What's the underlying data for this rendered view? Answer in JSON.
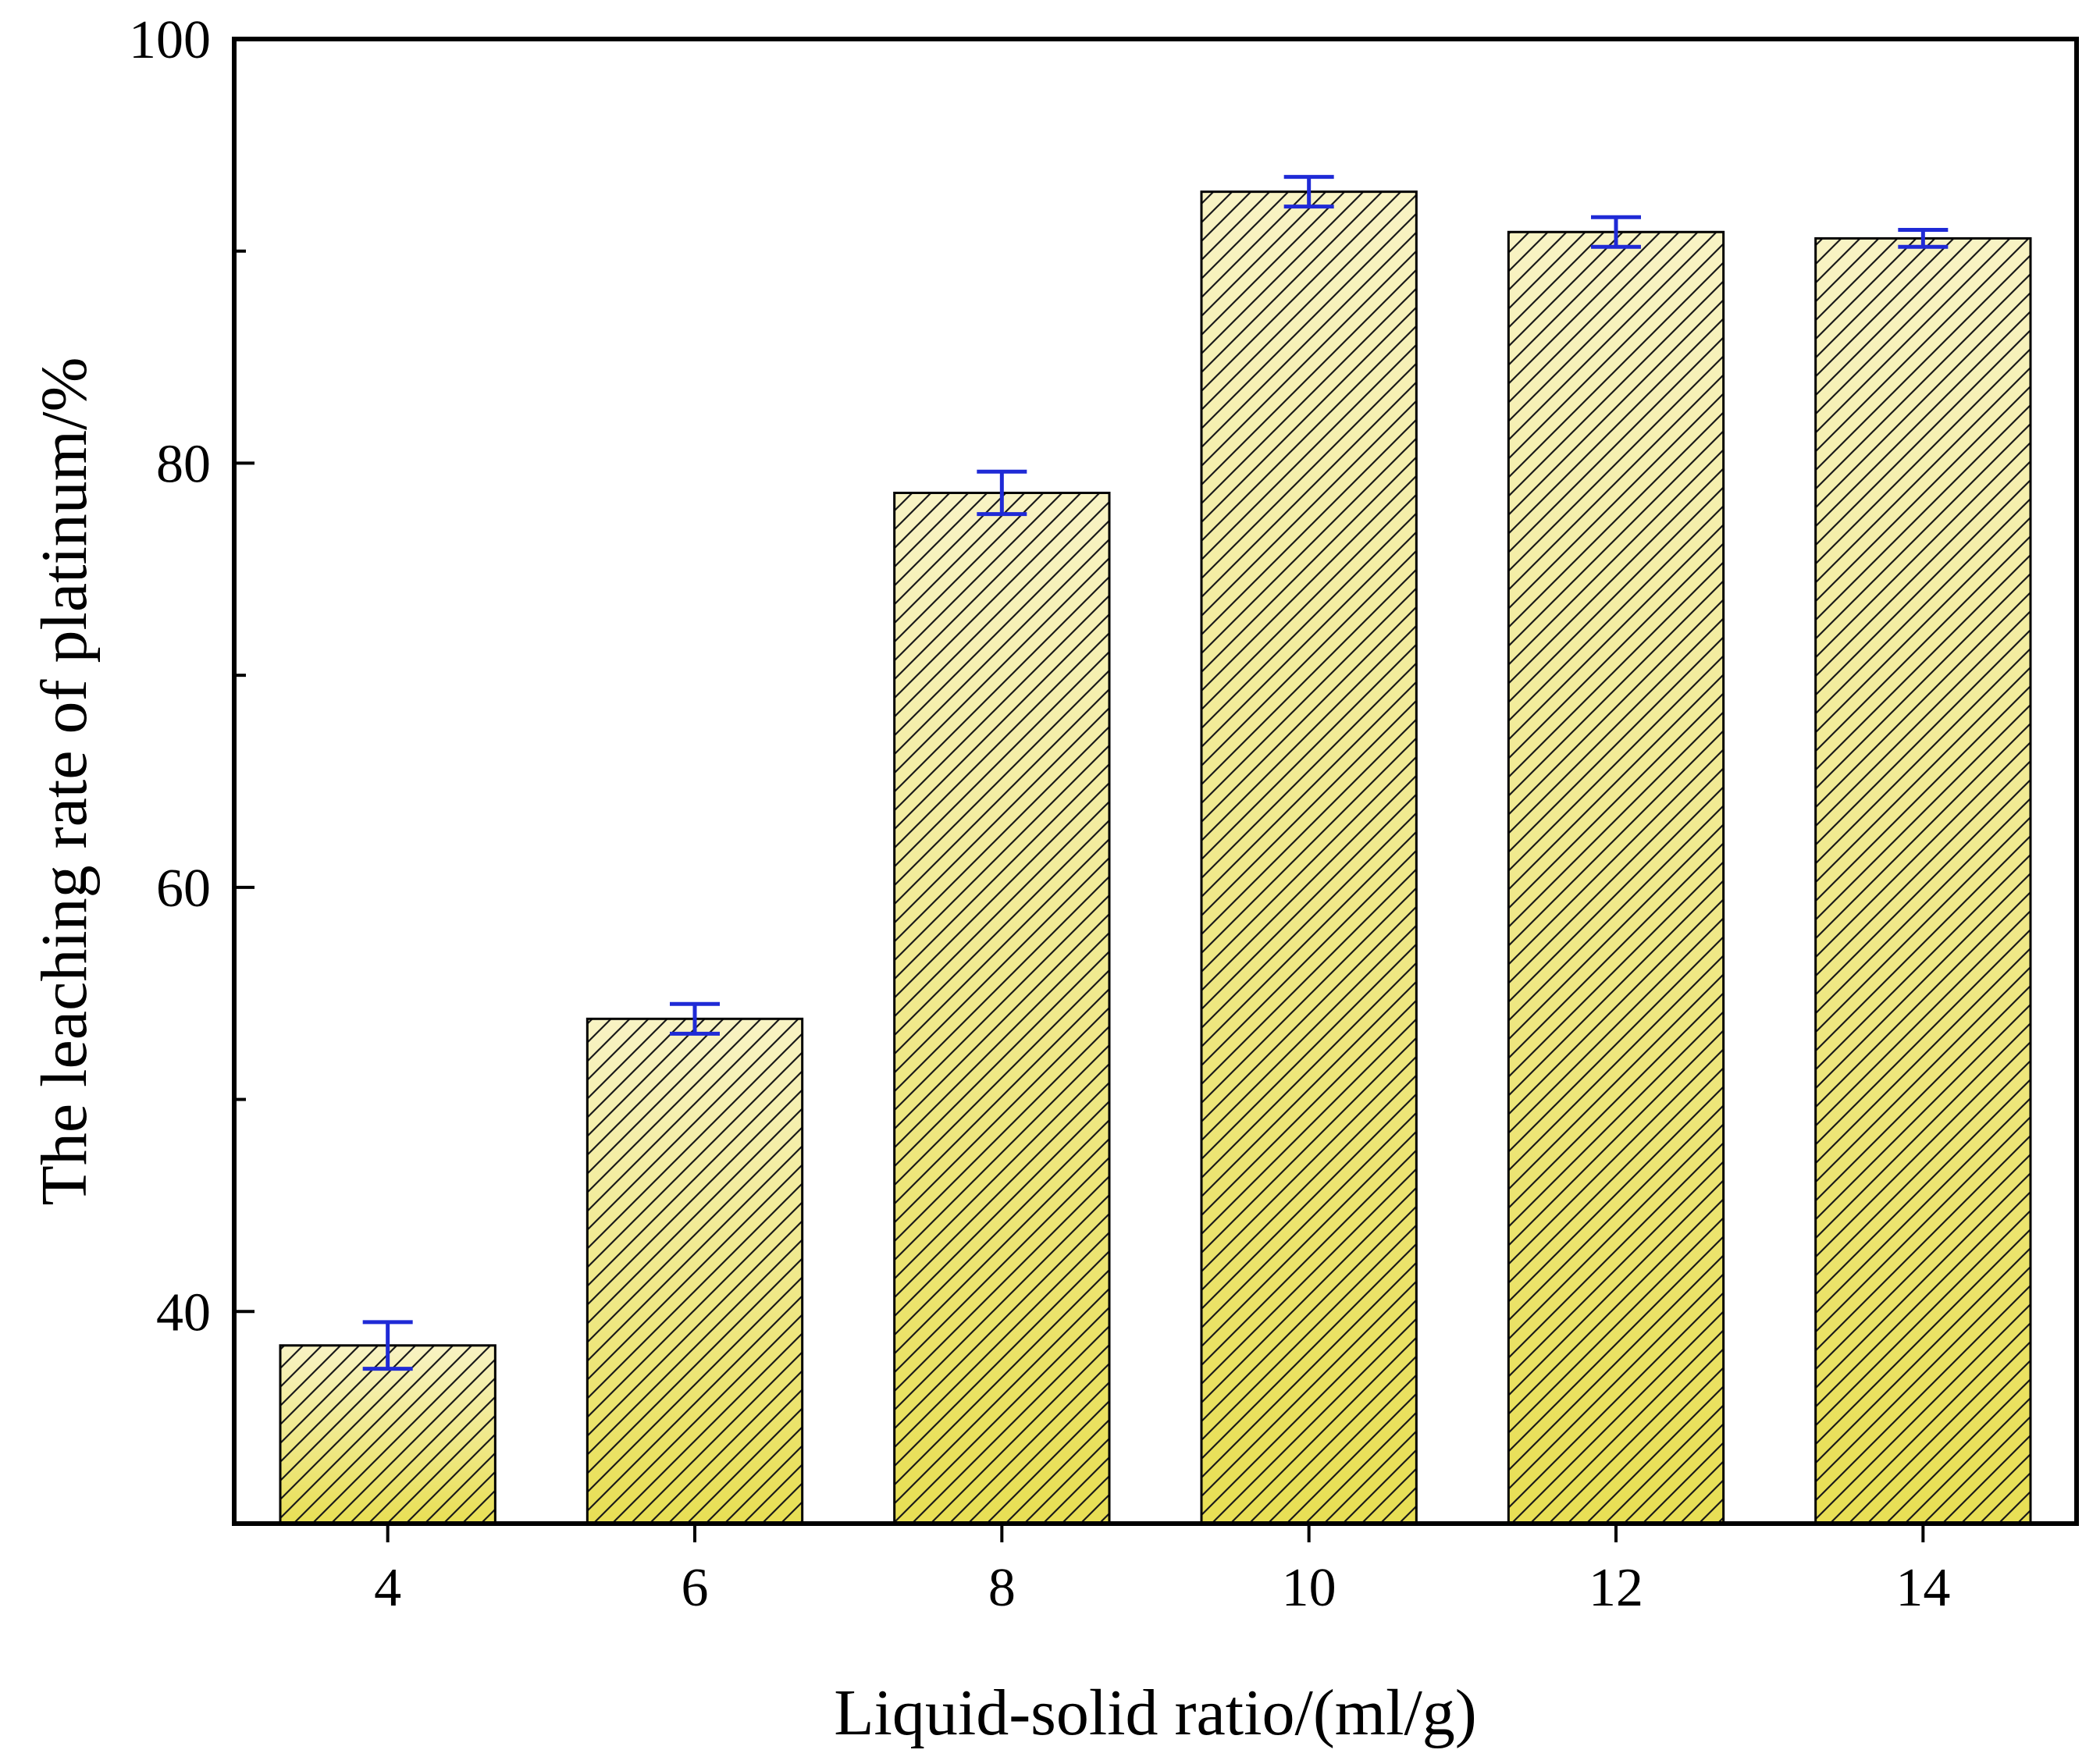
{
  "chart_data": {
    "type": "bar",
    "title": "",
    "xlabel": "Liquid-solid ratio/(ml/g)",
    "ylabel": "The leaching rate of platinum/%",
    "categories": [
      "4",
      "6",
      "8",
      "10",
      "12",
      "14"
    ],
    "values": [
      38.4,
      53.8,
      78.6,
      92.8,
      90.9,
      90.6
    ],
    "errors": [
      1.1,
      0.7,
      1.0,
      0.7,
      0.7,
      0.4
    ],
    "ylim": [
      30,
      100
    ],
    "yticks": [
      40,
      60,
      80,
      100
    ],
    "yticks_minor": [
      50,
      70,
      90
    ],
    "grid": false,
    "colors": {
      "bar_fill_top": "#f8f3c4",
      "bar_fill_bottom": "#e8df55",
      "hatch": "#1a1a1a",
      "error_bar": "#1f2ad6",
      "axis": "#000000"
    }
  }
}
